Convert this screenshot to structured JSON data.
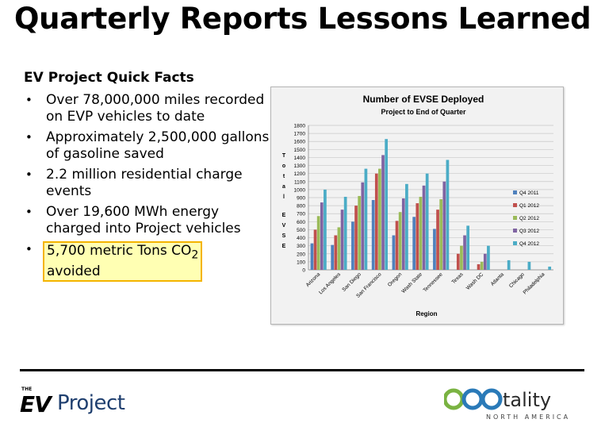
{
  "slide": {
    "title": "Quarterly Reports Lessons Learned",
    "facts_heading": "EV Project Quick Facts",
    "facts": [
      "Over 78,000,000 miles recorded on EVP vehicles to date",
      "Approximately 2,500,000 gallons of gasoline saved",
      "2.2 million residential charge events",
      "Over 19,600 MWh energy charged into Project vehicles"
    ],
    "highlight_fact": {
      "before": "5,700 metric Tons CO",
      "sub": "2",
      "after": " avoided"
    },
    "bullet": "•"
  },
  "logos": {
    "ev_the": "THE",
    "ev_mark": "EV",
    "ev_project": "Project",
    "eco_name": "tality",
    "eco_sub": "NORTH AMERICA"
  },
  "chart_data": {
    "type": "bar",
    "title": "Number of EVSE Deployed",
    "subtitle": "Project to End of Quarter",
    "xlabel": "Region",
    "ylabel": "Total EVSE",
    "ylim": [
      0,
      1800
    ],
    "ytick_step": 100,
    "grid": true,
    "legend_position": "right",
    "categories": [
      "Arizona",
      "Los Angeles",
      "San Diego",
      "San Francisco",
      "Oregon",
      "Wash State",
      "Tennessee",
      "Texas",
      "Wash DC",
      "Atlanta",
      "Chicago",
      "Philadelphia"
    ],
    "series": [
      {
        "name": "Q4 2011",
        "color": "#4f81bd",
        "values": [
          330,
          310,
          600,
          870,
          430,
          660,
          510,
          0,
          0,
          0,
          0,
          0
        ]
      },
      {
        "name": "Q1 2012",
        "color": "#c0504d",
        "values": [
          500,
          430,
          800,
          1200,
          610,
          830,
          750,
          200,
          70,
          0,
          0,
          0
        ]
      },
      {
        "name": "Q2 2012",
        "color": "#9bbb59",
        "values": [
          670,
          530,
          920,
          1260,
          720,
          910,
          880,
          300,
          100,
          0,
          0,
          0
        ]
      },
      {
        "name": "Q3 2012",
        "color": "#8064a2",
        "values": [
          840,
          750,
          1090,
          1430,
          890,
          1050,
          1100,
          430,
          200,
          0,
          0,
          0
        ]
      },
      {
        "name": "Q4 2012",
        "color": "#4bacc6",
        "values": [
          1000,
          910,
          1260,
          1630,
          1070,
          1200,
          1370,
          550,
          300,
          120,
          100,
          40
        ]
      }
    ]
  },
  "colors": {
    "highlight_fill": "#ffffb3",
    "highlight_border": "#f4b400",
    "ev_blue": "#1f3f6f",
    "eco_green": "#7ab342",
    "eco_blue": "#2a7ab8"
  }
}
